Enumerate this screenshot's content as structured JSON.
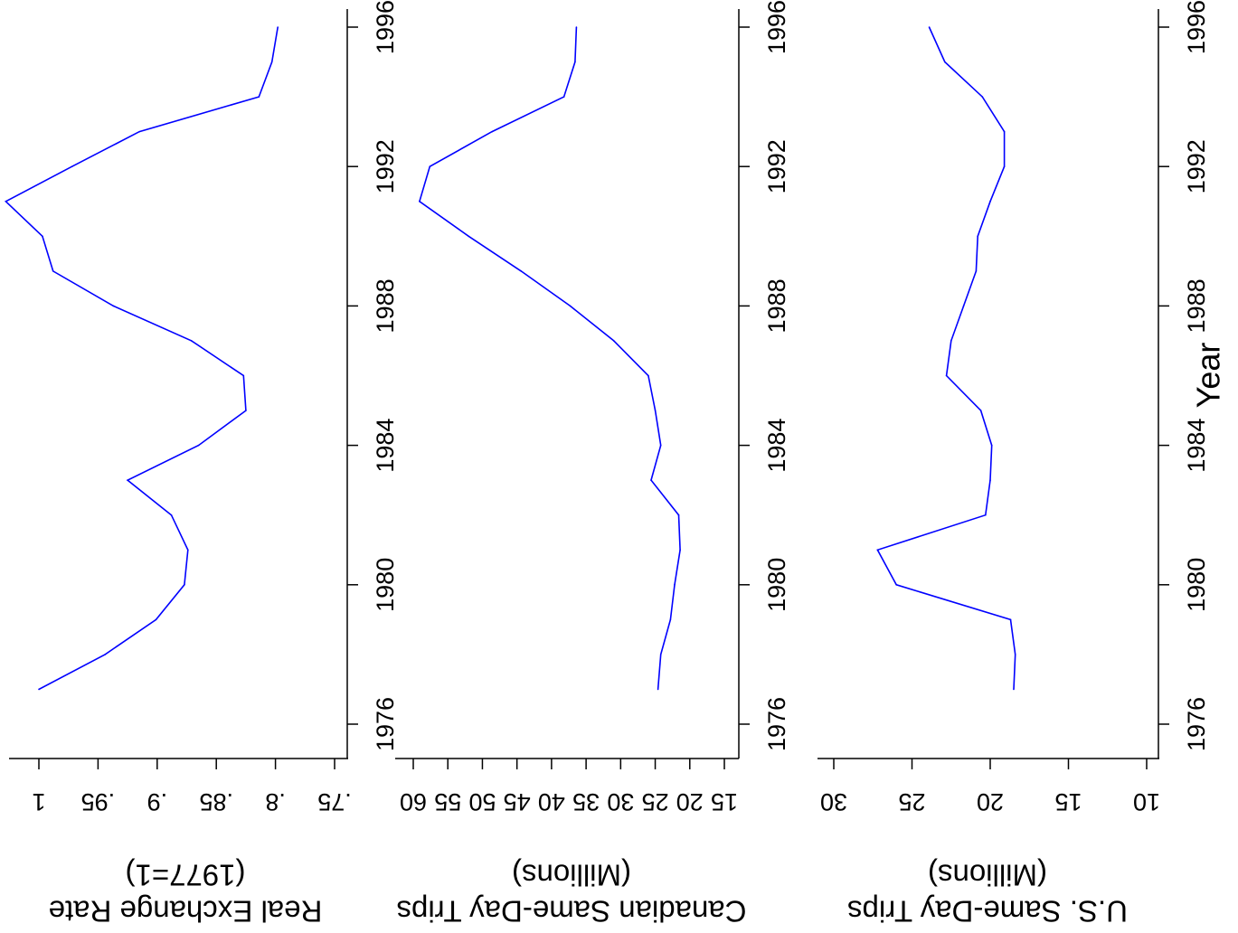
{
  "figure": {
    "xlabel": "Year",
    "line_color": "#0000ff",
    "axis_color": "#000000"
  },
  "chart_data": [
    {
      "type": "line",
      "title_line1": "Real Exchange Rate",
      "title_line2": "(1977=1)",
      "xlabel": "Year",
      "xlim": [
        1976,
        1996
      ],
      "xticks": [
        1976,
        1980,
        1984,
        1988,
        1992,
        1996
      ],
      "ylim": [
        0.75,
        1.0
      ],
      "yticks": [
        0.75,
        0.8,
        0.85,
        0.9,
        0.95,
        1.0
      ],
      "ytick_labels": [
        ".75",
        ".8",
        ".85",
        ".9",
        ".95",
        "1"
      ],
      "grid": false,
      "rotation": "rotated 180 degrees",
      "series": [
        {
          "x": [
            1977,
            1978,
            1979,
            1980,
            1981,
            1982,
            1983,
            1984,
            1985,
            1986,
            1987,
            1988,
            1989,
            1990,
            1991,
            1992,
            1993,
            1994,
            1995,
            1996
          ],
          "y": [
            1.0,
            0.944,
            0.901,
            0.877,
            0.874,
            0.888,
            0.925,
            0.865,
            0.825,
            0.827,
            0.871,
            0.937,
            0.988,
            0.997,
            1.028,
            0.972,
            0.915,
            0.814,
            0.803,
            0.798
          ]
        }
      ]
    },
    {
      "type": "line",
      "title_line1": "Canadian Same-Day Trips",
      "title_line2": "(Millions)",
      "xlabel": "Year",
      "xlim": [
        1976,
        1996
      ],
      "xticks": [
        1976,
        1980,
        1984,
        1988,
        1992,
        1996
      ],
      "ylim": [
        15,
        60
      ],
      "yticks": [
        15,
        20,
        25,
        30,
        35,
        40,
        45,
        50,
        55,
        60
      ],
      "ytick_labels": [
        "15",
        "20",
        "25",
        "30",
        "35",
        "40",
        "45",
        "50",
        "55",
        "60"
      ],
      "grid": false,
      "rotation": "rotated 180 degrees",
      "series": [
        {
          "x": [
            1977,
            1978,
            1979,
            1980,
            1981,
            1982,
            1983,
            1984,
            1985,
            1986,
            1987,
            1988,
            1989,
            1990,
            1991,
            1992,
            1993,
            1994,
            1995,
            1996
          ],
          "y": [
            24.6,
            24.2,
            22.8,
            22.2,
            21.4,
            21.6,
            25.6,
            24.2,
            25.0,
            26.0,
            31.0,
            37.3,
            44.4,
            52.0,
            59.1,
            57.6,
            48.6,
            38.2,
            36.6,
            36.4
          ]
        }
      ]
    },
    {
      "type": "line",
      "title_line1": "U.S. Same-Day Trips",
      "title_line2": "(Millions)",
      "xlabel": "Year",
      "xlim": [
        1976,
        1996
      ],
      "xticks": [
        1976,
        1980,
        1984,
        1988,
        1992,
        1996
      ],
      "ylim": [
        10,
        30
      ],
      "yticks": [
        10,
        15,
        20,
        25,
        30
      ],
      "ytick_labels": [
        "10",
        "15",
        "20",
        "25",
        "30"
      ],
      "grid": false,
      "rotation": "rotated 180 degrees",
      "series": [
        {
          "x": [
            1977,
            1978,
            1979,
            1980,
            1981,
            1982,
            1983,
            1984,
            1985,
            1986,
            1987,
            1988,
            1989,
            1990,
            1991,
            1992,
            1993,
            1994,
            1995,
            1996
          ],
          "y": [
            18.5,
            18.4,
            18.7,
            26.0,
            27.2,
            20.3,
            20.0,
            19.9,
            20.6,
            22.8,
            22.5,
            21.7,
            20.9,
            20.8,
            20.0,
            19.1,
            19.1,
            20.5,
            22.9,
            23.9
          ]
        }
      ]
    }
  ]
}
